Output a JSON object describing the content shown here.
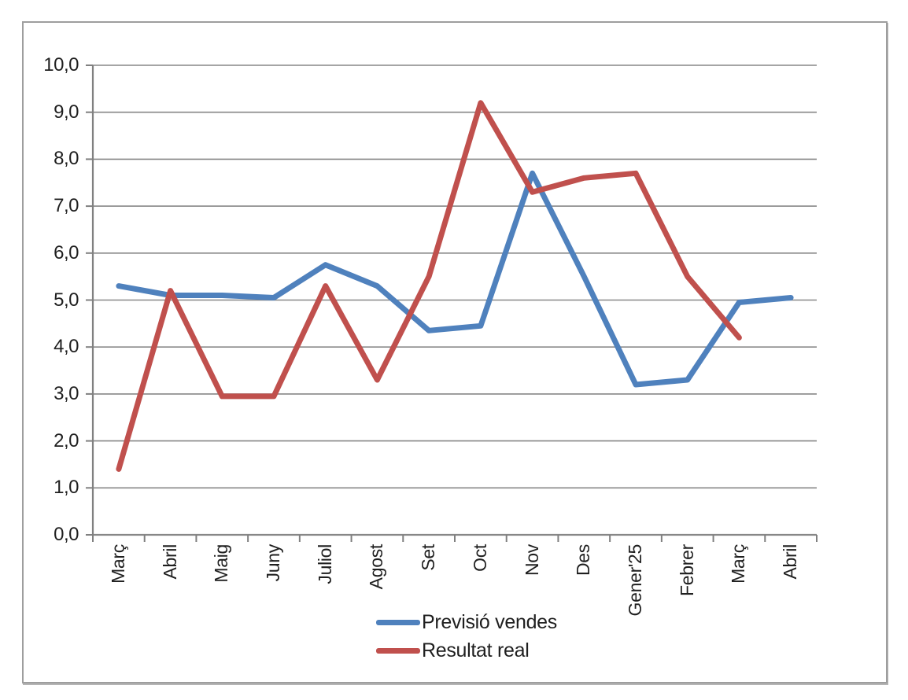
{
  "chart_data": {
    "type": "line",
    "categories": [
      "Març",
      "Abril",
      "Maig",
      "Juny",
      "Juliol",
      "Agost",
      "Set",
      "Oct",
      "Nov",
      "Des",
      "Gener'25",
      "Febrer",
      "Març",
      "Abril"
    ],
    "series": [
      {
        "name": "Previsió vendes",
        "color": "#4F81BD",
        "values": [
          5.3,
          5.1,
          5.1,
          5.05,
          5.75,
          5.3,
          4.35,
          4.45,
          7.7,
          5.5,
          3.2,
          3.3,
          4.95,
          5.05
        ]
      },
      {
        "name": "Resultat real",
        "color": "#C0504D",
        "values": [
          1.4,
          5.2,
          2.95,
          2.95,
          5.3,
          3.3,
          5.5,
          9.2,
          7.3,
          7.6,
          7.7,
          5.5,
          4.2,
          null
        ]
      }
    ],
    "ylim": [
      0,
      10
    ],
    "ytick_step": 1,
    "ytick_labels": [
      "0,0",
      "1,0",
      "2,0",
      "3,0",
      "4,0",
      "5,0",
      "6,0",
      "7,0",
      "8,0",
      "9,0",
      "10,0"
    ],
    "decimal_separator": ",",
    "grid": true,
    "legend_position": "bottom"
  },
  "styles": {
    "grid_color": "#878787",
    "axis_color": "#808080",
    "text_color": "#1f1f1f",
    "frame_border": "#9e9e9e",
    "background": "#ffffff"
  }
}
